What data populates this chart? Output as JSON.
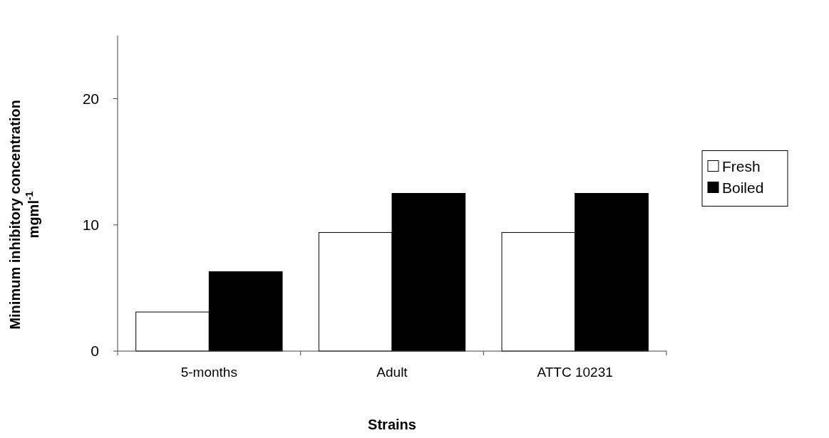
{
  "chart_data": {
    "type": "bar",
    "xlabel": "Strains",
    "ylabel": "Minimum inhibitory concentration mgml$^{-1}$",
    "categories": [
      "5-months",
      "Adult",
      "ATTC 10231"
    ],
    "series": [
      {
        "name": "Fresh",
        "color": "#ffffff",
        "values": [
          3.1,
          9.4,
          9.4
        ]
      },
      {
        "name": "Boiled",
        "color": "#000000",
        "values": [
          6.3,
          12.5,
          12.5
        ]
      }
    ],
    "ylim": [
      0,
      25
    ],
    "yticks": [
      0,
      10,
      20
    ],
    "grid": false,
    "legend": "right"
  }
}
